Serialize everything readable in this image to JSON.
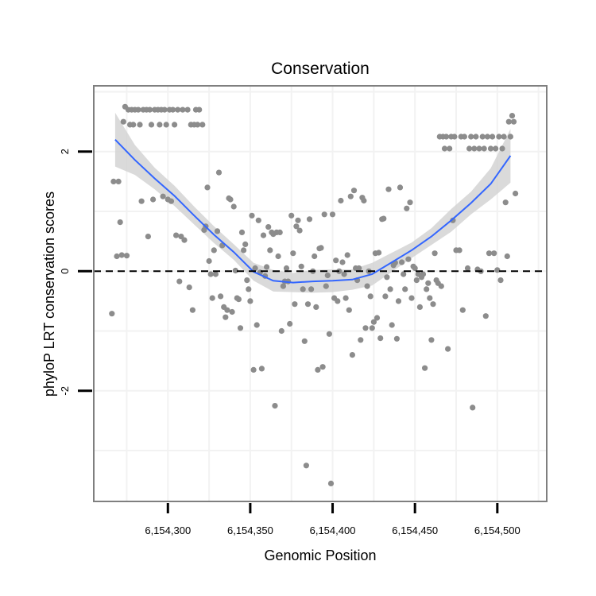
{
  "chart_data": {
    "type": "scatter",
    "title": "Conservation",
    "xlabel": "Genomic Position",
    "ylabel": "phyloP LRT conservation scores",
    "xlim": [
      6154255,
      6154530
    ],
    "ylim": [
      -3.85,
      3.1
    ],
    "x_ticks": [
      {
        "value": 6154300,
        "label": "6,154,300"
      },
      {
        "value": 6154350,
        "label": "6,154,350"
      },
      {
        "value": 6154400,
        "label": "6,154,400"
      },
      {
        "value": 6154450,
        "label": "6,154,450"
      },
      {
        "value": 6154500,
        "label": "6,154,500"
      }
    ],
    "y_ticks": [
      {
        "value": 2,
        "label": "2"
      },
      {
        "value": 0,
        "label": "0"
      },
      {
        "value": -2,
        "label": "-2"
      }
    ],
    "reference_line": {
      "y": 0,
      "style": "dashed"
    },
    "colors": {
      "points": "#8c8c8c",
      "smooth": "#3366ff",
      "band": "#d4d4d4",
      "grid": "#f2f2f2",
      "border": "#7f7f7f"
    },
    "series": [
      {
        "name": "phyloP scores",
        "points": [
          [
            6154266,
            -0.71
          ],
          [
            6154267,
            1.5
          ],
          [
            6154269,
            0.25
          ],
          [
            6154270,
            1.5
          ],
          [
            6154271,
            0.82
          ],
          [
            6154272,
            0.27
          ],
          [
            6154273,
            2.5
          ],
          [
            6154274,
            2.75
          ],
          [
            6154275,
            0.26
          ],
          [
            6154276,
            2.7
          ],
          [
            6154277,
            2.45
          ],
          [
            6154278,
            2.7
          ],
          [
            6154279,
            2.45
          ],
          [
            6154280,
            2.7
          ],
          [
            6154282,
            2.7
          ],
          [
            6154283,
            2.45
          ],
          [
            6154284,
            1.17
          ],
          [
            6154285,
            2.7
          ],
          [
            6154287,
            2.7
          ],
          [
            6154288,
            0.58
          ],
          [
            6154289,
            2.7
          ],
          [
            6154290,
            2.45
          ],
          [
            6154291,
            1.2
          ],
          [
            6154292,
            2.7
          ],
          [
            6154294,
            2.7
          ],
          [
            6154295,
            2.45
          ],
          [
            6154296,
            2.7
          ],
          [
            6154297,
            1.25
          ],
          [
            6154298,
            2.7
          ],
          [
            6154299,
            2.45
          ],
          [
            6154300,
            1.2
          ],
          [
            6154301,
            2.7
          ],
          [
            6154302,
            1.17
          ],
          [
            6154303,
            2.7
          ],
          [
            6154304,
            2.45
          ],
          [
            6154305,
            0.6
          ],
          [
            6154306,
            2.7
          ],
          [
            6154307,
            -0.17
          ],
          [
            6154308,
            0.58
          ],
          [
            6154309,
            2.7
          ],
          [
            6154310,
            0.52
          ],
          [
            6154312,
            2.7
          ],
          [
            6154313,
            -0.27
          ],
          [
            6154314,
            2.45
          ],
          [
            6154315,
            -0.65
          ],
          [
            6154316,
            2.45
          ],
          [
            6154317,
            2.7
          ],
          [
            6154318,
            2.45
          ],
          [
            6154319,
            2.7
          ],
          [
            6154321,
            2.45
          ],
          [
            6154322,
            0.69
          ],
          [
            6154323,
            0.75
          ],
          [
            6154324,
            1.4
          ],
          [
            6154325,
            0.17
          ],
          [
            6154326,
            -0.05
          ],
          [
            6154327,
            -0.45
          ],
          [
            6154328,
            0.35
          ],
          [
            6154329,
            -0.05
          ],
          [
            6154330,
            0.67
          ],
          [
            6154331,
            1.65
          ],
          [
            6154332,
            -0.42
          ],
          [
            6154333,
            0.43
          ],
          [
            6154334,
            -0.6
          ],
          [
            6154335,
            -0.77
          ],
          [
            6154336,
            -0.65
          ],
          [
            6154337,
            1.22
          ],
          [
            6154338,
            1.2
          ],
          [
            6154339,
            -0.68
          ],
          [
            6154340,
            1.08
          ],
          [
            6154341,
            0.01
          ],
          [
            6154342,
            -0.45
          ],
          [
            6154343,
            -0.47
          ],
          [
            6154344,
            -0.95
          ],
          [
            6154345,
            0.65
          ],
          [
            6154346,
            0.35
          ],
          [
            6154347,
            0.45
          ],
          [
            6154348,
            -0.15
          ],
          [
            6154349,
            -0.3
          ],
          [
            6154350,
            -0.5
          ],
          [
            6154351,
            0.93
          ],
          [
            6154352,
            -1.65
          ],
          [
            6154353,
            0.05
          ],
          [
            6154354,
            -0.9
          ],
          [
            6154355,
            0.85
          ],
          [
            6154356,
            -0.02
          ],
          [
            6154357,
            -1.63
          ],
          [
            6154358,
            0.6
          ],
          [
            6154359,
            -0.08
          ],
          [
            6154360,
            0.07
          ],
          [
            6154361,
            0.74
          ],
          [
            6154362,
            0.35
          ],
          [
            6154363,
            0.65
          ],
          [
            6154364,
            0.62
          ],
          [
            6154365,
            -2.25
          ],
          [
            6154366,
            0.65
          ],
          [
            6154367,
            0.25
          ],
          [
            6154368,
            0.65
          ],
          [
            6154369,
            -1.0
          ],
          [
            6154370,
            -0.25
          ],
          [
            6154371,
            -0.17
          ],
          [
            6154372,
            0.05
          ],
          [
            6154373,
            -0.17
          ],
          [
            6154374,
            -0.88
          ],
          [
            6154375,
            0.93
          ],
          [
            6154376,
            0.3
          ],
          [
            6154377,
            -0.55
          ],
          [
            6154378,
            0.75
          ],
          [
            6154379,
            0.85
          ],
          [
            6154380,
            0.68
          ],
          [
            6154381,
            0.08
          ],
          [
            6154382,
            -0.3
          ],
          [
            6154383,
            -1.17
          ],
          [
            6154384,
            -3.25
          ],
          [
            6154385,
            -0.55
          ],
          [
            6154386,
            0.87
          ],
          [
            6154387,
            -0.3
          ],
          [
            6154388,
            0.0
          ],
          [
            6154389,
            0.25
          ],
          [
            6154390,
            -0.6
          ],
          [
            6154391,
            -1.65
          ],
          [
            6154392,
            0.38
          ],
          [
            6154393,
            0.39
          ],
          [
            6154394,
            -1.6
          ],
          [
            6154395,
            0.95
          ],
          [
            6154396,
            -0.25
          ],
          [
            6154397,
            -0.07
          ],
          [
            6154398,
            -1.05
          ],
          [
            6154399,
            -3.55
          ],
          [
            6154400,
            0.95
          ],
          [
            6154401,
            -0.45
          ],
          [
            6154402,
            0.18
          ],
          [
            6154403,
            -0.5
          ],
          [
            6154404,
            0.0
          ],
          [
            6154405,
            1.18
          ],
          [
            6154406,
            0.15
          ],
          [
            6154407,
            -0.05
          ],
          [
            6154408,
            -0.45
          ],
          [
            6154409,
            0.27
          ],
          [
            6154410,
            -0.65
          ],
          [
            6154411,
            1.25
          ],
          [
            6154412,
            -1.4
          ],
          [
            6154413,
            1.35
          ],
          [
            6154414,
            0.05
          ],
          [
            6154415,
            -0.15
          ],
          [
            6154416,
            0.05
          ],
          [
            6154417,
            -1.15
          ],
          [
            6154418,
            1.23
          ],
          [
            6154419,
            1.18
          ],
          [
            6154420,
            -0.95
          ],
          [
            6154421,
            -0.25
          ],
          [
            6154422,
            0.0
          ],
          [
            6154423,
            -0.42
          ],
          [
            6154424,
            -0.95
          ],
          [
            6154425,
            -0.85
          ],
          [
            6154426,
            0.3
          ],
          [
            6154427,
            -0.78
          ],
          [
            6154428,
            0.31
          ],
          [
            6154429,
            -1.12
          ],
          [
            6154430,
            0.87
          ],
          [
            6154431,
            0.88
          ],
          [
            6154432,
            -0.42
          ],
          [
            6154433,
            -0.1
          ],
          [
            6154434,
            1.37
          ],
          [
            6154435,
            -0.3
          ],
          [
            6154436,
            -0.9
          ],
          [
            6154437,
            0.1
          ],
          [
            6154438,
            0.14
          ],
          [
            6154439,
            -1.13
          ],
          [
            6154440,
            -0.5
          ],
          [
            6154441,
            1.4
          ],
          [
            6154442,
            0.15
          ],
          [
            6154443,
            -0.05
          ],
          [
            6154444,
            -0.3
          ],
          [
            6154445,
            1.05
          ],
          [
            6154446,
            0.2
          ],
          [
            6154447,
            1.15
          ],
          [
            6154448,
            -0.45
          ],
          [
            6154449,
            0.08
          ],
          [
            6154450,
            0.05
          ],
          [
            6154451,
            -0.15
          ],
          [
            6154452,
            -0.05
          ],
          [
            6154453,
            -0.6
          ],
          [
            6154454,
            -0.1
          ],
          [
            6154455,
            -0.05
          ],
          [
            6154456,
            -1.62
          ],
          [
            6154457,
            -0.3
          ],
          [
            6154458,
            -0.2
          ],
          [
            6154459,
            -0.45
          ],
          [
            6154460,
            -1.15
          ],
          [
            6154461,
            -0.55
          ],
          [
            6154462,
            0.3
          ],
          [
            6154463,
            -0.15
          ],
          [
            6154464,
            -0.2
          ],
          [
            6154465,
            2.25
          ],
          [
            6154466,
            -0.25
          ],
          [
            6154467,
            2.25
          ],
          [
            6154468,
            2.05
          ],
          [
            6154469,
            2.25
          ],
          [
            6154470,
            -1.3
          ],
          [
            6154471,
            2.05
          ],
          [
            6154472,
            2.25
          ],
          [
            6154473,
            0.85
          ],
          [
            6154474,
            2.25
          ],
          [
            6154475,
            0.35
          ],
          [
            6154477,
            0.35
          ],
          [
            6154478,
            2.25
          ],
          [
            6154479,
            -0.65
          ],
          [
            6154480,
            2.25
          ],
          [
            6154482,
            0.05
          ],
          [
            6154483,
            2.05
          ],
          [
            6154484,
            2.25
          ],
          [
            6154485,
            -2.28
          ],
          [
            6154486,
            2.05
          ],
          [
            6154487,
            2.25
          ],
          [
            6154488,
            0.03
          ],
          [
            6154489,
            2.05
          ],
          [
            6154490,
            0.0
          ],
          [
            6154491,
            2.25
          ],
          [
            6154492,
            2.05
          ],
          [
            6154493,
            -0.75
          ],
          [
            6154494,
            2.25
          ],
          [
            6154495,
            0.3
          ],
          [
            6154496,
            2.05
          ],
          [
            6154497,
            2.25
          ],
          [
            6154498,
            0.3
          ],
          [
            6154499,
            2.05
          ],
          [
            6154500,
            0.02
          ],
          [
            6154501,
            2.25
          ],
          [
            6154502,
            -0.15
          ],
          [
            6154503,
            2.05
          ],
          [
            6154504,
            2.25
          ],
          [
            6154505,
            1.15
          ],
          [
            6154506,
            0.25
          ],
          [
            6154507,
            2.5
          ],
          [
            6154508,
            2.25
          ],
          [
            6154509,
            2.6
          ],
          [
            6154510,
            2.5
          ],
          [
            6154511,
            1.3
          ]
        ]
      }
    ],
    "smooth": {
      "name": "loess fit",
      "x": [
        6154268,
        6154280,
        6154292,
        6154304,
        6154316,
        6154328,
        6154340,
        6154352,
        6154364,
        6154376,
        6154388,
        6154400,
        6154412,
        6154424,
        6154436,
        6154448,
        6154460,
        6154472,
        6154484,
        6154496,
        6154508
      ],
      "y": [
        2.2,
        1.86,
        1.55,
        1.26,
        0.93,
        0.61,
        0.32,
        -0.01,
        -0.16,
        -0.19,
        -0.17,
        -0.16,
        -0.14,
        -0.05,
        0.15,
        0.35,
        0.58,
        0.85,
        1.14,
        1.46,
        1.93
      ],
      "lower": [
        1.75,
        1.61,
        1.37,
        1.09,
        0.78,
        0.47,
        0.19,
        -0.16,
        -0.34,
        -0.35,
        -0.36,
        -0.35,
        -0.31,
        -0.24,
        -0.01,
        0.22,
        0.44,
        0.66,
        0.95,
        1.2,
        1.48
      ],
      "upper": [
        2.65,
        2.11,
        1.73,
        1.43,
        1.08,
        0.75,
        0.45,
        0.14,
        0.02,
        -0.03,
        0.02,
        0.03,
        0.03,
        0.14,
        0.31,
        0.48,
        0.72,
        1.04,
        1.33,
        1.72,
        2.38
      ]
    }
  }
}
